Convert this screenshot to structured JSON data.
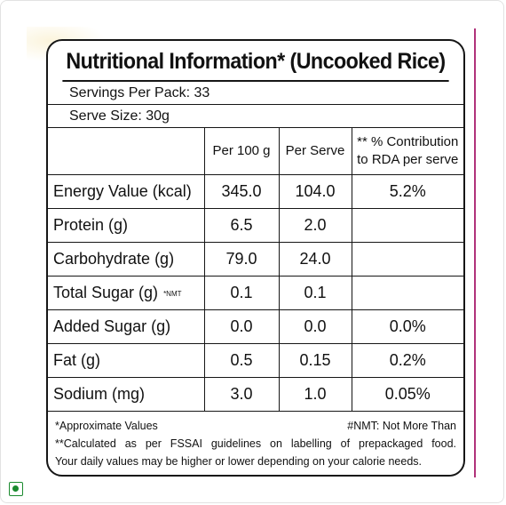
{
  "title": "Nutritional Information* (Uncooked Rice)",
  "servings_per_pack": "Servings Per Pack: 33",
  "serve_size": "Serve Size: 30g",
  "columns": {
    "per_100g": "Per 100 g",
    "per_serve": "Per Serve",
    "rda_line1": "** % Contribution",
    "rda_line2": "to RDA per serve"
  },
  "rows": [
    {
      "label": "Energy Value (kcal)",
      "per_100g": "345.0",
      "per_serve": "104.0",
      "rda": "5.2%"
    },
    {
      "label": "Protein (g)",
      "per_100g": "6.5",
      "per_serve": "2.0",
      "rda": ""
    },
    {
      "label": "Carbohydrate (g)",
      "per_100g": "79.0",
      "per_serve": "24.0",
      "rda": ""
    },
    {
      "label": "Total Sugar (g)",
      "note": "*NMT",
      "per_100g": "0.1",
      "per_serve": "0.1",
      "rda": ""
    },
    {
      "label": "Added Sugar (g)",
      "per_100g": "0.0",
      "per_serve": "0.0",
      "rda": "0.0%"
    },
    {
      "label": "Fat (g)",
      "per_100g": "0.5",
      "per_serve": "0.15",
      "rda": "0.2%"
    },
    {
      "label": "Sodium (mg)",
      "per_100g": "3.0",
      "per_serve": "1.0",
      "rda": "0.05%"
    }
  ],
  "footnotes": {
    "approx": "*Approximate Values",
    "nmt": "#NMT: Not More Than",
    "fssai": "**Calculated as per FSSAI guidelines on labelling of prepackaged food.",
    "daily": "Your daily values may be higher or lower depending on your calorie needs."
  },
  "colors": {
    "veg_mark": "#1a8a2e",
    "accent_line": "#b0327a",
    "border": "#161616"
  },
  "icons": {
    "veg": "veg-mark-icon"
  }
}
